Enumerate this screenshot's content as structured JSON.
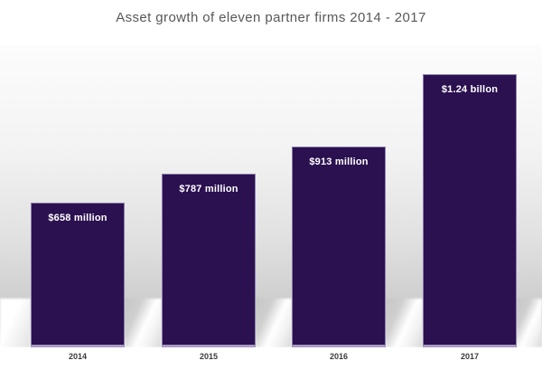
{
  "title": "Asset growth of eleven partner firms 2014 - 2017",
  "chart_data": {
    "type": "bar",
    "title": "Asset growth of eleven partner firms 2014 - 2017",
    "categories": [
      "2014",
      "2015",
      "2016",
      "2017"
    ],
    "values": [
      658,
      787,
      913,
      1240
    ],
    "unit": "USD millions",
    "bar_labels": [
      "$658 million",
      "$787 million",
      "$913 million",
      "$1.24 billon"
    ],
    "xlabel": "",
    "ylabel": "",
    "ylim": [
      0,
      1330
    ],
    "grid": false,
    "legend": false,
    "colors": {
      "bar_fill": "#2b1150",
      "bar_border": "#8d7fae",
      "bar_bottom_edge": "#a99cc4",
      "bar_label_text": "#ffffff",
      "title_text": "#58585a",
      "axis_label_text": "#3b3b3b",
      "plot_bg_top": "#fcfcfc",
      "plot_bg_floor": "#c9c9c9"
    }
  }
}
